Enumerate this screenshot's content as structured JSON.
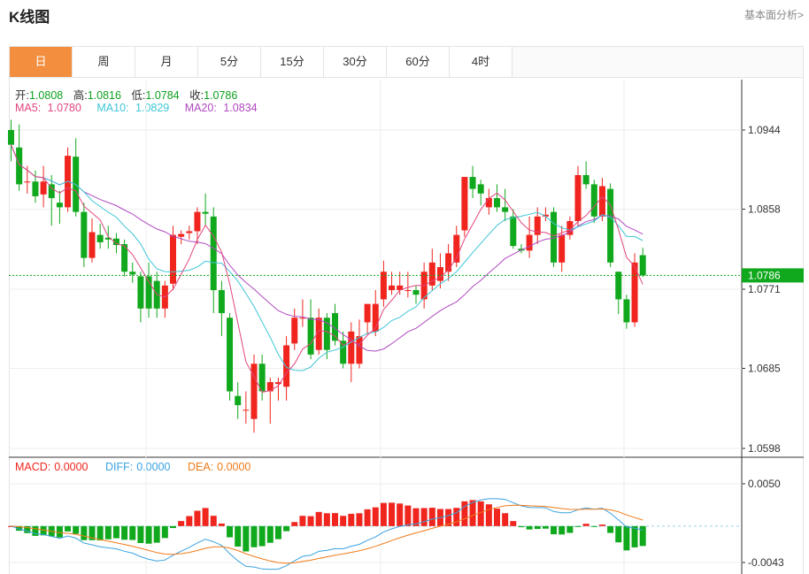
{
  "header": {
    "title": "K线图",
    "analysis_link": "基本面分析>"
  },
  "tabs": [
    {
      "label": "日",
      "active": true
    },
    {
      "label": "周",
      "active": false
    },
    {
      "label": "月",
      "active": false
    },
    {
      "label": "5分",
      "active": false
    },
    {
      "label": "15分",
      "active": false
    },
    {
      "label": "30分",
      "active": false
    },
    {
      "label": "60分",
      "active": false
    },
    {
      "label": "4时",
      "active": false
    }
  ],
  "ohlc": {
    "open_label": "开:",
    "open": "1.0808",
    "high_label": "高:",
    "high": "1.0816",
    "low_label": "低:",
    "low": "1.0784",
    "close_label": "收:",
    "close": "1.0786"
  },
  "ma": {
    "ma5_label": "MA5:",
    "ma5": "1.0780",
    "ma10_label": "MA10:",
    "ma10": "1.0829",
    "ma20_label": "MA20:",
    "ma20": "1.0834"
  },
  "macd": {
    "macd_label": "MACD:",
    "macd": "0.0000",
    "diff_label": "DIFF:",
    "diff": "0.0000",
    "dea_label": "DEA:",
    "dea": "0.0000"
  },
  "colors": {
    "up": "#f0251e",
    "down": "#10a81c",
    "ma5": "#e2447f",
    "ma10": "#3ec6d6",
    "ma20": "#b04ac0",
    "dea": "#f07a18",
    "diff": "#3aa2e0",
    "accent": "#f28e3d"
  },
  "chart_data": {
    "type": "candlestick",
    "y_ticks": [
      "1.0944",
      "1.0858",
      "1.0771",
      "1.0685",
      "1.0598"
    ],
    "ylim": [
      1.0598,
      1.0944
    ],
    "current_price": "1.0786",
    "macd_ticks": [
      "0.0050",
      "-0.0043"
    ],
    "macd_ylim": [
      -0.0043,
      0.005
    ],
    "candles": [
      [
        1.0944,
        1.0928,
        1.0955,
        1.091
      ],
      [
        1.0925,
        1.0885,
        1.095,
        1.0878
      ],
      [
        1.0887,
        1.0888,
        1.0905,
        1.0875
      ],
      [
        1.0888,
        1.0872,
        1.09,
        1.0865
      ],
      [
        1.0874,
        1.0888,
        1.0905,
        1.086
      ],
      [
        1.0885,
        1.087,
        1.0895,
        1.084
      ],
      [
        1.0865,
        1.086,
        1.0878,
        1.0842
      ],
      [
        1.086,
        1.0916,
        1.0925,
        1.0855
      ],
      [
        1.0915,
        1.0855,
        1.0935,
        1.085
      ],
      [
        1.0855,
        1.0805,
        1.0865,
        1.0795
      ],
      [
        1.0805,
        1.0833,
        1.0848,
        1.08
      ],
      [
        1.083,
        1.0822,
        1.0842,
        1.0815
      ],
      [
        1.0827,
        1.0825,
        1.084,
        1.0815
      ],
      [
        1.0826,
        1.0819,
        1.0832,
        1.081
      ],
      [
        1.082,
        1.079,
        1.0825,
        1.0785
      ],
      [
        1.079,
        1.0787,
        1.08,
        1.0778
      ],
      [
        1.0785,
        1.075,
        1.079,
        1.0735
      ],
      [
        1.0785,
        1.075,
        1.08,
        1.074
      ],
      [
        1.078,
        1.075,
        1.079,
        1.074
      ],
      [
        1.075,
        1.0775,
        1.078,
        1.074
      ],
      [
        1.0777,
        1.083,
        1.084,
        1.077
      ],
      [
        1.0828,
        1.0831,
        1.0835,
        1.082
      ],
      [
        1.0832,
        1.0834,
        1.084,
        1.0825
      ],
      [
        1.0834,
        1.0855,
        1.086,
        1.082
      ],
      [
        1.0855,
        1.0853,
        1.0875,
        1.084
      ],
      [
        1.085,
        1.077,
        1.086,
        1.0745
      ],
      [
        1.077,
        1.0745,
        1.078,
        1.072
      ],
      [
        1.074,
        1.066,
        1.0745,
        1.065
      ],
      [
        1.0655,
        1.0645,
        1.067,
        1.063
      ],
      [
        1.064,
        1.064,
        1.066,
        1.0625
      ],
      [
        1.063,
        1.069,
        1.07,
        1.0615
      ],
      [
        1.069,
        1.066,
        1.07,
        1.065
      ],
      [
        1.066,
        1.067,
        1.0675,
        1.0625
      ],
      [
        1.0668,
        1.067,
        1.0675,
        1.065
      ],
      [
        1.0665,
        1.071,
        1.072,
        1.065
      ],
      [
        1.0712,
        1.074,
        1.075,
        1.0705
      ],
      [
        1.074,
        1.074,
        1.076,
        1.073
      ],
      [
        1.074,
        1.07,
        1.076,
        1.0695
      ],
      [
        1.0705,
        1.074,
        1.075,
        1.07
      ],
      [
        1.074,
        1.0705,
        1.0745,
        1.0695
      ],
      [
        1.0745,
        1.0715,
        1.0755,
        1.071
      ],
      [
        1.0715,
        1.069,
        1.0725,
        1.0685
      ],
      [
        1.069,
        1.0725,
        1.0735,
        1.067
      ],
      [
        1.069,
        1.072,
        1.0738,
        1.0685
      ],
      [
        1.0735,
        1.0755,
        1.0745,
        1.0722
      ],
      [
        1.0725,
        1.0755,
        1.077,
        1.072
      ],
      [
        1.076,
        1.079,
        1.0802,
        1.0752
      ],
      [
        1.077,
        1.0775,
        1.079,
        1.0765
      ],
      [
        1.077,
        1.0775,
        1.079,
        1.0765
      ],
      [
        1.077,
        1.077,
        1.079,
        1.0762
      ],
      [
        1.077,
        1.0765,
        1.0775,
        1.0755
      ],
      [
        1.076,
        1.079,
        1.08,
        1.075
      ],
      [
        1.0775,
        1.08,
        1.0815,
        1.077
      ],
      [
        1.078,
        1.0795,
        1.081,
        1.0772
      ],
      [
        1.079,
        1.081,
        1.082,
        1.078
      ],
      [
        1.08,
        1.083,
        1.084,
        1.0795
      ],
      [
        1.0835,
        1.0893,
        1.0893,
        1.0828
      ],
      [
        1.0893,
        1.088,
        1.0905,
        1.087
      ],
      [
        1.0885,
        1.0875,
        1.089,
        1.0862
      ],
      [
        1.086,
        1.087,
        1.088,
        1.0852
      ],
      [
        1.087,
        1.086,
        1.0885,
        1.0855
      ],
      [
        1.086,
        1.0855,
        1.088,
        1.0845
      ],
      [
        1.085,
        1.0818,
        1.0858,
        1.0815
      ],
      [
        1.0815,
        1.0813,
        1.082,
        1.081
      ],
      [
        1.0813,
        1.083,
        1.085,
        1.0805
      ],
      [
        1.083,
        1.085,
        1.086,
        1.082
      ],
      [
        1.085,
        1.0852,
        1.086,
        1.0845
      ],
      [
        1.0855,
        1.08,
        1.086,
        1.0795
      ],
      [
        1.08,
        1.083,
        1.084,
        1.079
      ],
      [
        1.083,
        1.0845,
        1.085,
        1.0825
      ],
      [
        1.0845,
        1.0895,
        1.0905,
        1.084
      ],
      [
        1.0895,
        1.0885,
        1.091,
        1.088
      ],
      [
        1.0885,
        1.085,
        1.089,
        1.0843
      ],
      [
        1.085,
        1.0883,
        1.0892,
        1.0845
      ],
      [
        1.088,
        1.08,
        1.0886,
        1.0795
      ],
      [
        1.079,
        1.076,
        1.079,
        1.0744
      ],
      [
        1.076,
        1.0735,
        1.0765,
        1.0728
      ],
      [
        1.0735,
        1.08,
        1.081,
        1.073
      ],
      [
        1.0808,
        1.0786,
        1.0816,
        1.0784
      ]
    ]
  }
}
